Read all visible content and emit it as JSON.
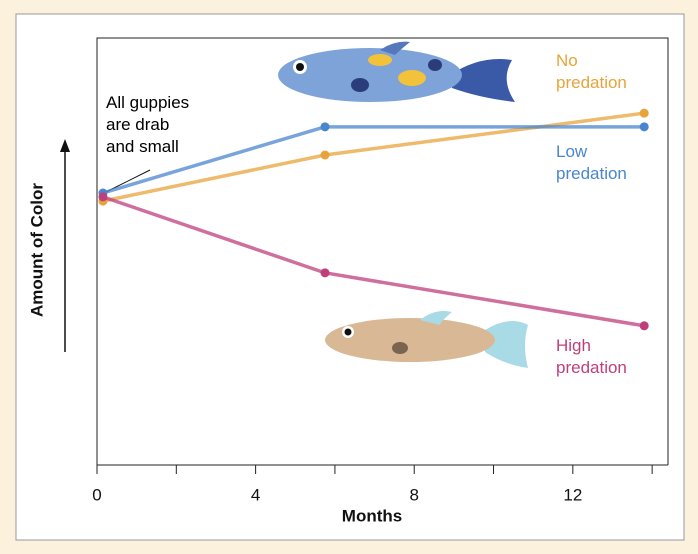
{
  "chart_data": {
    "type": "line",
    "x_label": "Months",
    "y_label": "Amount of Color",
    "annotation": "All guppies\nare drab\nand small",
    "x": [
      0.15,
      5.75,
      13.8
    ],
    "series": [
      {
        "name": "No\npredation",
        "color": "#e8a33a",
        "values": [
          6.18,
          7.26,
          8.24
        ]
      },
      {
        "name": "Low\npredation",
        "color": "#4a86cf",
        "values": [
          6.37,
          7.92,
          7.92
        ]
      },
      {
        "name": "High\npredation",
        "color": "#bf3f7c",
        "values": [
          6.28,
          4.5,
          3.26
        ]
      }
    ],
    "xlim": [
      0,
      14.4
    ],
    "ylim": [
      0,
      10
    ],
    "xticks": [
      0,
      4,
      8,
      12
    ],
    "xminor_ticks": [
      2,
      6,
      10,
      14
    ]
  }
}
